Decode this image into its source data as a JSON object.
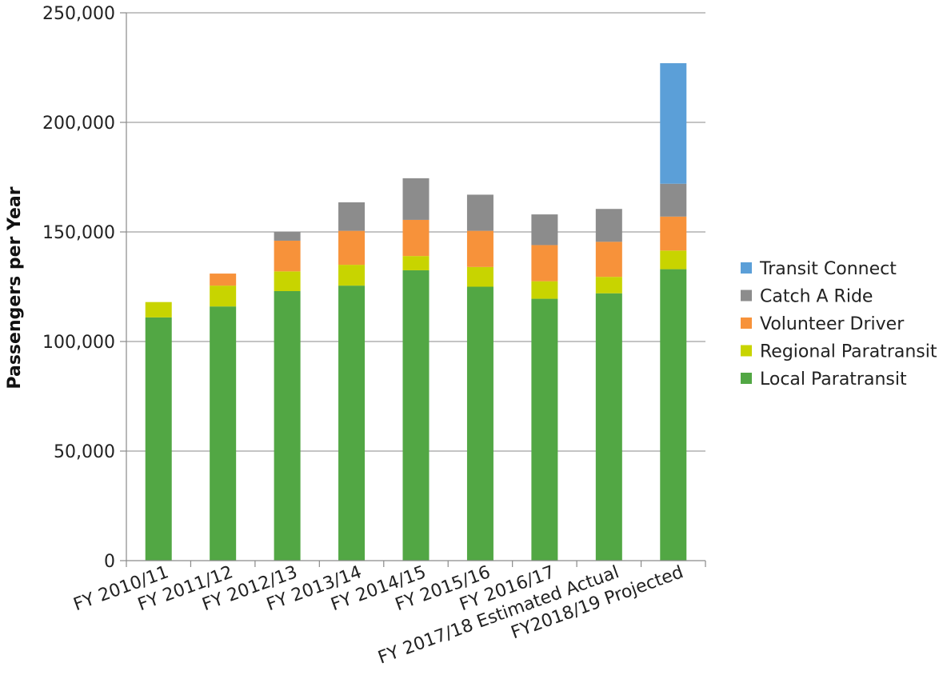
{
  "chart_data": {
    "type": "bar",
    "stacked": true,
    "title": "",
    "xlabel": "",
    "ylabel": "Passengers per Year",
    "ylim": [
      0,
      250000
    ],
    "yticks": [
      0,
      50000,
      100000,
      150000,
      200000,
      250000
    ],
    "ytick_labels": [
      "0",
      "50,000",
      "100,000",
      "150,000",
      "200,000",
      "250,000"
    ],
    "grid": true,
    "legend_position": "right",
    "categories": [
      "FY 2010/11",
      "FY 2011/12",
      "FY 2012/13",
      "FY 2013/14",
      "FY 2014/15",
      "FY 2015/16",
      "FY 2016/17",
      "FY 2017/18 Estimated Actual",
      "FY2018/19 Projected"
    ],
    "series": [
      {
        "name": "Local Paratransit",
        "color": "#52a744",
        "values": [
          111000,
          116000,
          123000,
          125500,
          132500,
          125000,
          119500,
          122000,
          133000
        ]
      },
      {
        "name": "Regional Paratransit",
        "color": "#c8d400",
        "values": [
          7000,
          9500,
          9000,
          9500,
          6500,
          9000,
          8000,
          7500,
          8500
        ]
      },
      {
        "name": "Volunteer Driver",
        "color": "#f7923a",
        "values": [
          0,
          5500,
          14000,
          15500,
          16500,
          16500,
          16500,
          16000,
          15500
        ]
      },
      {
        "name": "Catch A Ride",
        "color": "#8c8c8c",
        "values": [
          0,
          0,
          4000,
          13000,
          19000,
          16500,
          14000,
          15000,
          15000
        ]
      },
      {
        "name": "Transit Connect",
        "color": "#5b9fd8",
        "values": [
          0,
          0,
          0,
          0,
          0,
          0,
          0,
          0,
          55000
        ]
      }
    ]
  }
}
